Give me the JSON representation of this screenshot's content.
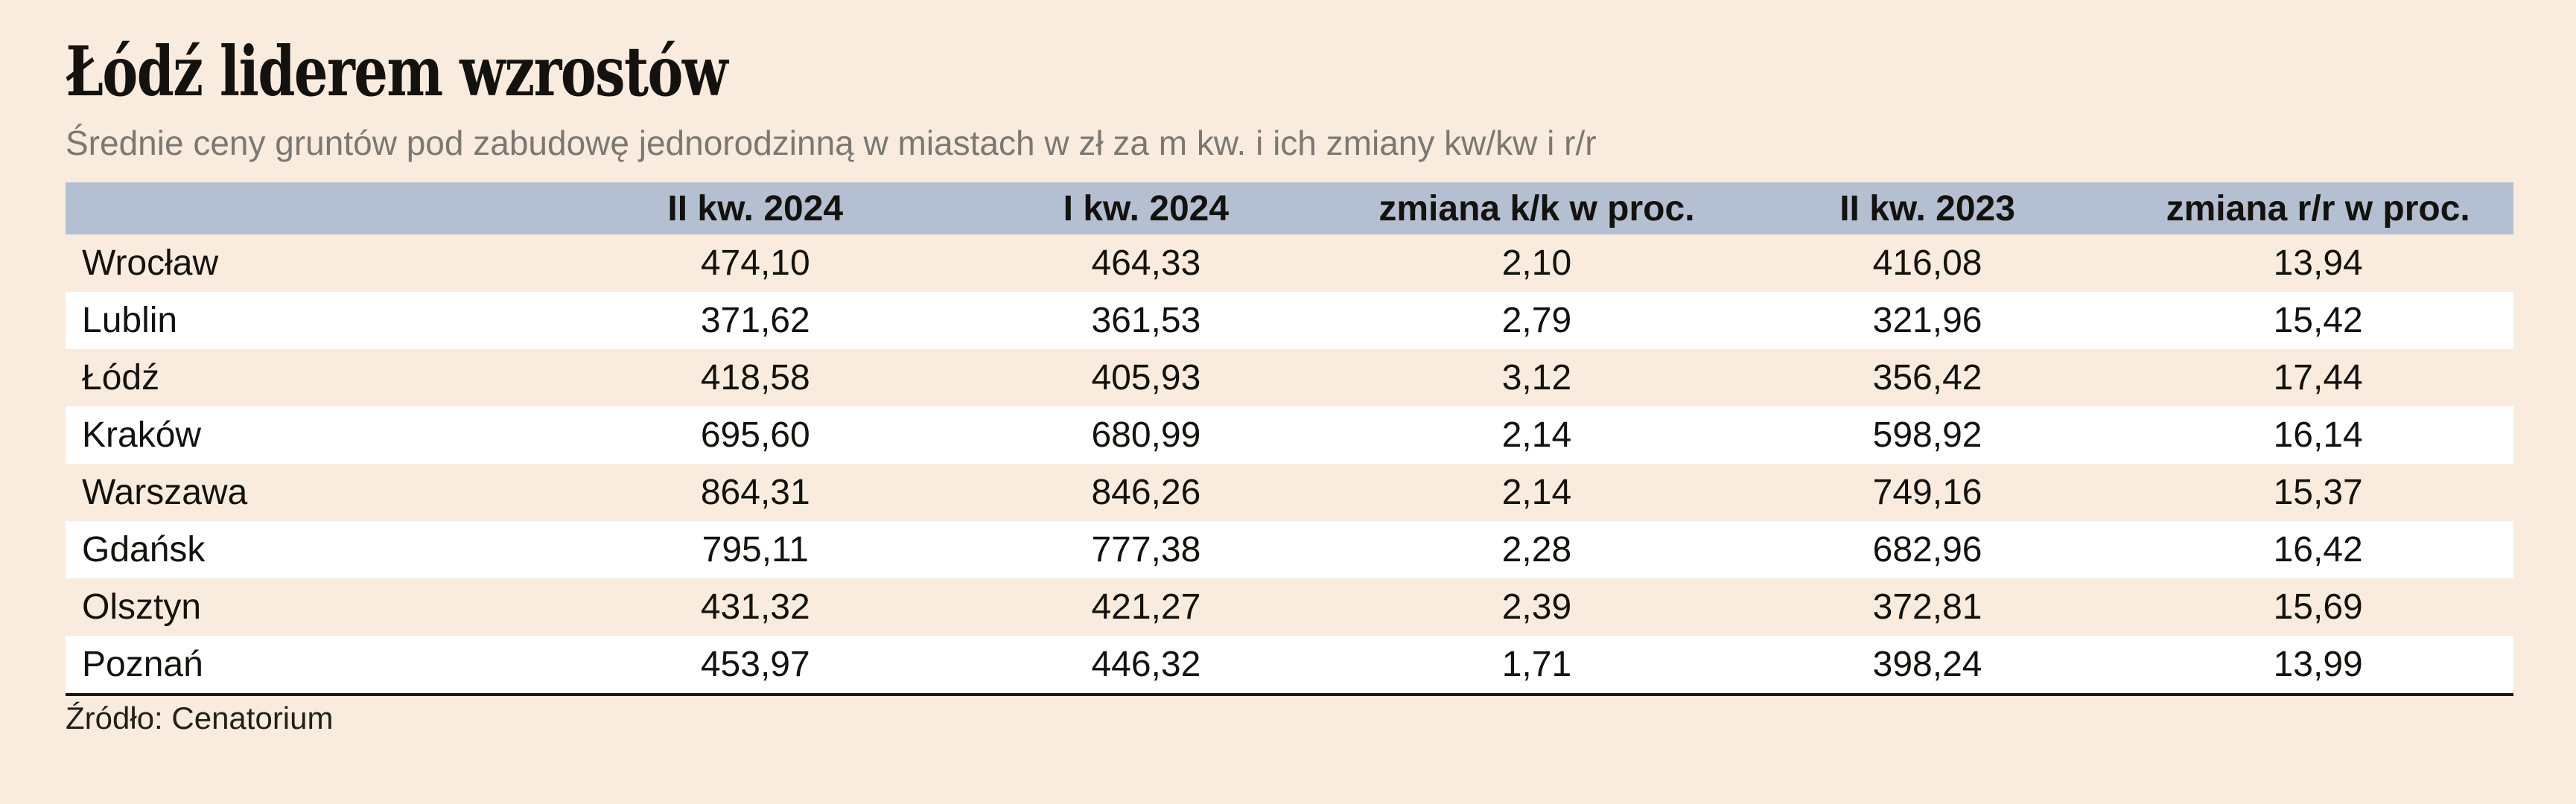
{
  "page": {
    "background_color": "#f9ecde",
    "header_bg_color": "#b5bfd2",
    "stripe_colors": [
      "#f9ecde",
      "#ffffff"
    ],
    "title_color": "#14120e",
    "subtitle_color": "#7b7873"
  },
  "chart_data": {
    "type": "table",
    "title": "Łódź liderem wzrostów",
    "subtitle": "Średnie ceny gruntów pod zabudowę jednorodzinną w miastach w zł za m kw. i ich zmiany kw/kw i r/r",
    "columns": [
      "",
      "II kw. 2024",
      "I kw. 2024",
      "zmiana k/k w proc.",
      "II kw. 2023",
      "zmiana r/r w proc."
    ],
    "rows": [
      {
        "city": "Wrocław",
        "values": [
          "474,10",
          "464,33",
          "2,10",
          "416,08",
          "13,94"
        ]
      },
      {
        "city": "Lublin",
        "values": [
          "371,62",
          "361,53",
          "2,79",
          "321,96",
          "15,42"
        ]
      },
      {
        "city": "Łódź",
        "values": [
          "418,58",
          "405,93",
          "3,12",
          "356,42",
          "17,44"
        ]
      },
      {
        "city": "Kraków",
        "values": [
          "695,60",
          "680,99",
          "2,14",
          "598,92",
          "16,14"
        ]
      },
      {
        "city": "Warszawa",
        "values": [
          "864,31",
          "846,26",
          "2,14",
          "749,16",
          "15,37"
        ]
      },
      {
        "city": "Gdańsk",
        "values": [
          "795,11",
          "777,38",
          "2,28",
          "682,96",
          "16,42"
        ]
      },
      {
        "city": "Olsztyn",
        "values": [
          "431,32",
          "421,27",
          "2,39",
          "372,81",
          "15,69"
        ]
      },
      {
        "city": "Poznań",
        "values": [
          "453,97",
          "446,32",
          "1,71",
          "398,24",
          "13,99"
        ]
      }
    ],
    "source": "Źródło: Cenatorium",
    "layout": {
      "striped": true,
      "legend_position": "none",
      "grid": false,
      "value_alignment": "center",
      "city_alignment": "left"
    }
  }
}
